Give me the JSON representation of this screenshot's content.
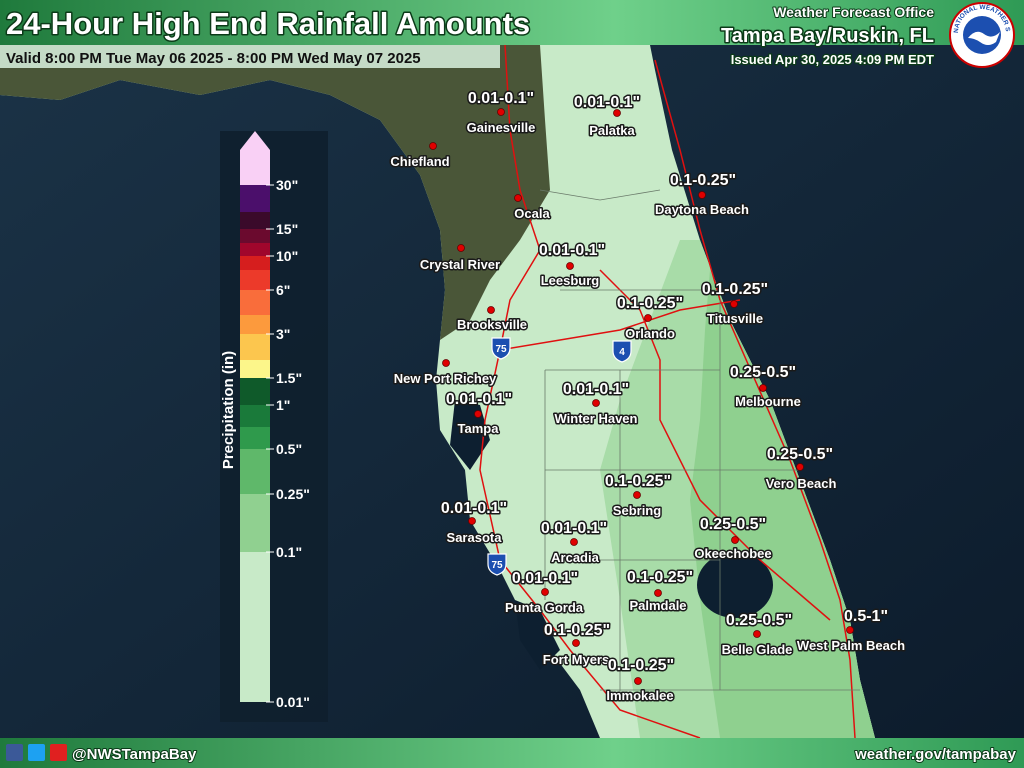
{
  "header": {
    "title": "24-Hour High End Rainfall Amounts",
    "valid": "Valid 8:00 PM Tue May 06 2025 - 8:00 PM Wed May 07 2025",
    "office_line": "Weather Forecast Office",
    "office": "Tampa Bay/Ruskin, FL",
    "issued": "Issued Apr 30, 2025 4:09 PM EDT",
    "logo_text": "NATIONAL WEATHER SERVICE"
  },
  "legend": {
    "title": "Precipitation (in)",
    "ticks": [
      "30\"",
      "15\"",
      "10\"",
      "6\"",
      "3\"",
      "1.5\"",
      "1\"",
      "0.5\"",
      "0.25\"",
      "0.1\"",
      "0.01\""
    ]
  },
  "highway_shields": [
    "75",
    "4",
    "75"
  ],
  "cities": [
    {
      "name": "Gainesville",
      "amount": "0.01-0.1\""
    },
    {
      "name": "Palatka",
      "amount": "0.01-0.1\""
    },
    {
      "name": "Chiefland"
    },
    {
      "name": "Daytona Beach",
      "amount": "0.1-0.25\""
    },
    {
      "name": "Ocala"
    },
    {
      "name": "Crystal River"
    },
    {
      "name": "Leesburg",
      "amount": "0.01-0.1\""
    },
    {
      "name": "Brooksville"
    },
    {
      "name": "Orlando",
      "amount": "0.1-0.25\""
    },
    {
      "name": "Titusville",
      "amount": "0.1-0.25\""
    },
    {
      "name": "New Port Richey"
    },
    {
      "name": "Melbourne",
      "amount": "0.25-0.5\""
    },
    {
      "name": "Tampa",
      "amount": "0.01-0.1\""
    },
    {
      "name": "Winter Haven",
      "amount": "0.01-0.1\""
    },
    {
      "name": "Vero Beach",
      "amount": "0.25-0.5\""
    },
    {
      "name": "Sebring",
      "amount": "0.1-0.25\""
    },
    {
      "name": "Sarasota",
      "amount": "0.01-0.1\""
    },
    {
      "name": "Okeechobee",
      "amount": "0.25-0.5\""
    },
    {
      "name": "Arcadia",
      "amount": "0.01-0.1\""
    },
    {
      "name": "Punta Gorda",
      "amount": "0.01-0.1\""
    },
    {
      "name": "Palmdale",
      "amount": "0.1-0.25\""
    },
    {
      "name": "Belle Glade",
      "amount": "0.25-0.5\""
    },
    {
      "name": "West Palm Beach",
      "amount": "0.5-1\""
    },
    {
      "name": "Fort Myers",
      "amount": "0.1-0.25\""
    },
    {
      "name": "Immokalee",
      "amount": "0.1-0.25\""
    }
  ],
  "footer": {
    "handle": "@NWSTampaBay",
    "url": "weather.gov/tampabay"
  }
}
